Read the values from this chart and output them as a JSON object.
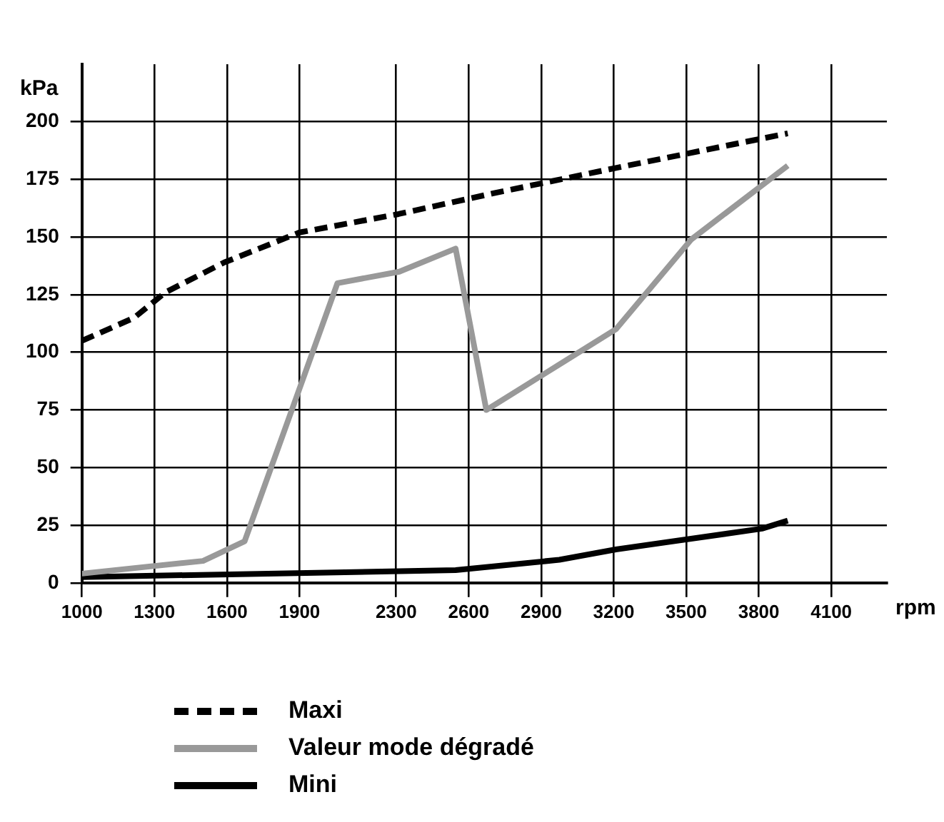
{
  "chart_data": {
    "type": "line",
    "xlabel": "rpm",
    "ylabel": "kPa",
    "xlim": [
      1000,
      4330
    ],
    "ylim": [
      0,
      225
    ],
    "xticks": [
      1000,
      1300,
      1600,
      1900,
      2300,
      2600,
      2900,
      3200,
      3500,
      3800,
      4100
    ],
    "yticks": [
      0,
      25,
      50,
      75,
      100,
      125,
      150,
      175,
      200
    ],
    "grid": true,
    "legend": "bottom",
    "series": [
      {
        "name": "Maxi",
        "color": "#000000",
        "line_style": "dashed",
        "x": [
          1000,
          1216,
          1345,
          1589,
          1900,
          2310,
          2702,
          3209,
          3920
        ],
        "values": [
          105,
          115,
          126,
          139,
          152,
          160,
          169,
          180,
          195
        ]
      },
      {
        "name": "Valeur mode dégradé",
        "color": "#999999",
        "line_style": "solid",
        "x": [
          1000,
          1501,
          1673,
          2057,
          2313,
          2546,
          2673,
          3209,
          3521,
          3920
        ],
        "values": [
          4,
          9.5,
          18,
          130,
          135,
          145,
          75,
          110,
          149,
          181
        ]
      },
      {
        "name": "Mini",
        "color": "#000000",
        "line_style": "solid",
        "x": [
          1000,
          2546,
          2975,
          3209,
          3813,
          3920
        ],
        "values": [
          2.5,
          5.5,
          10,
          14.5,
          23.5,
          27
        ]
      }
    ]
  }
}
